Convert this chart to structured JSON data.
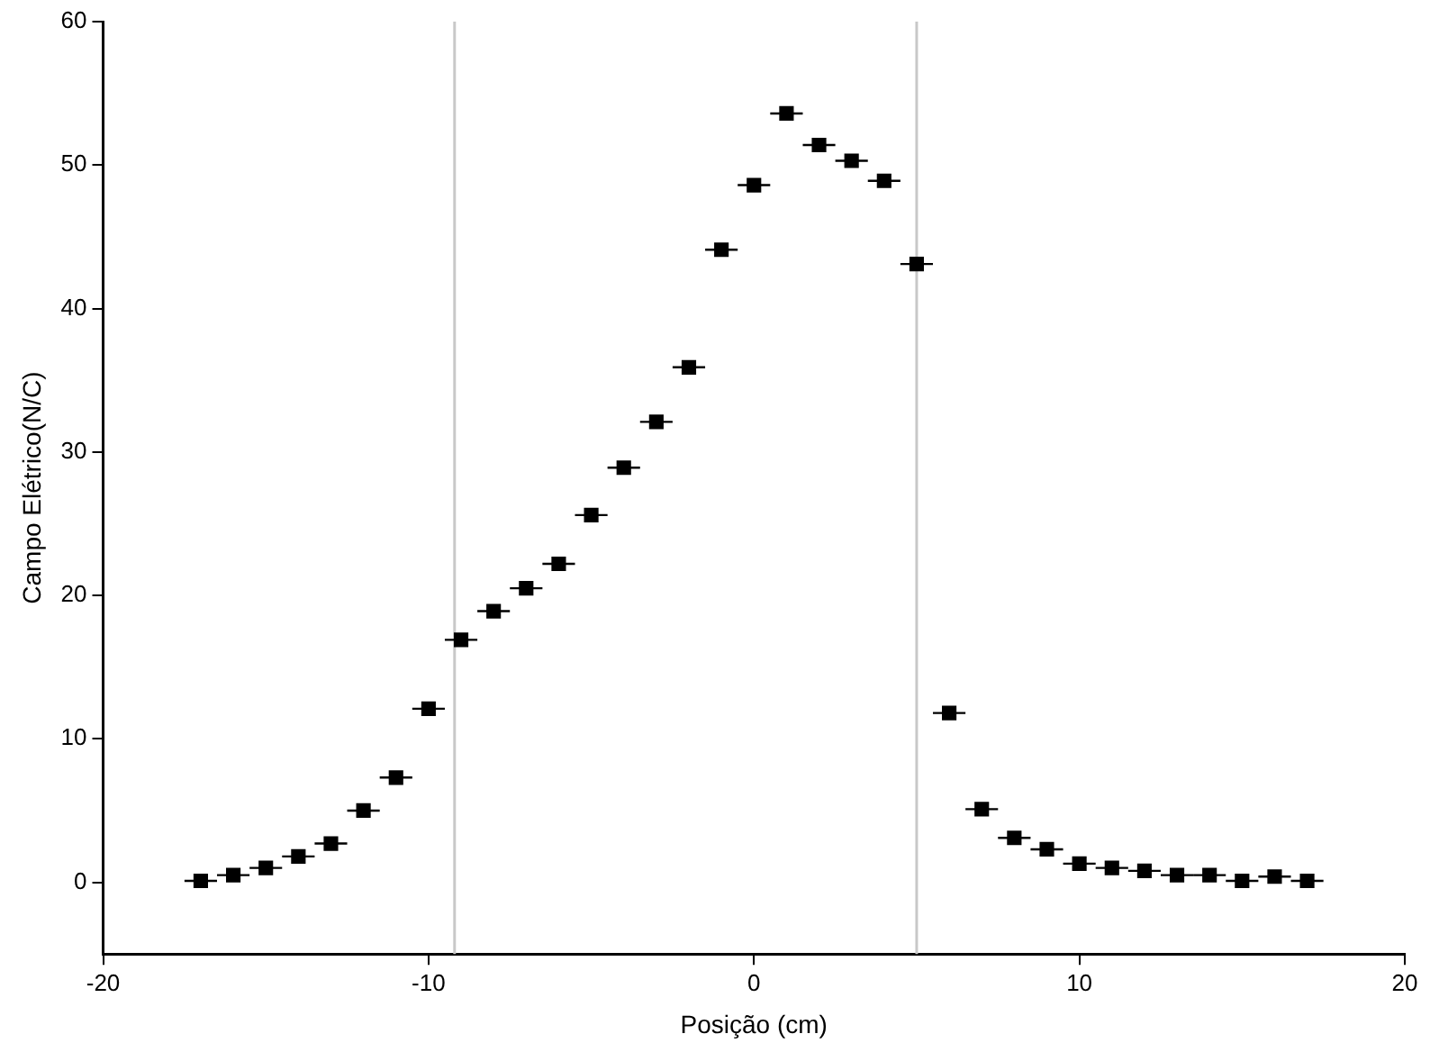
{
  "chart_data": {
    "type": "scatter",
    "xlabel": "Posição (cm)",
    "ylabel": "Campo Elétrico(N/C)",
    "x": [
      -17,
      -16,
      -15,
      -14,
      -13,
      -12,
      -11,
      -10,
      -9,
      -8,
      -7,
      -6,
      -5,
      -4,
      -3,
      -2,
      -1,
      0,
      1,
      2,
      3,
      4,
      5,
      6,
      7,
      8,
      9,
      10,
      11,
      12,
      13,
      14,
      15,
      16,
      17
    ],
    "series": [
      {
        "color": "#000000",
        "values": [
          0.1,
          0.5,
          1.0,
          1.8,
          2.7,
          5.0,
          7.3,
          12.1,
          16.9,
          18.9,
          20.5,
          22.2,
          25.6,
          28.9,
          32.1,
          35.9,
          44.1,
          48.6,
          53.6,
          51.4,
          50.3,
          48.9,
          43.1,
          11.8,
          5.1,
          3.1,
          2.3,
          1.3,
          1.0,
          0.8,
          0.5,
          0.5,
          0.1,
          0.4,
          0.1
        ],
        "xerrors": [
          0.5,
          0.5,
          0.5,
          0.5,
          0.5,
          0.5,
          0.5,
          0.5,
          0.5,
          0.5,
          0.5,
          0.5,
          0.5,
          0.5,
          0.5,
          0.5,
          0.5,
          0.5,
          0.5,
          0.5,
          0.5,
          0.5,
          0.5,
          0.5,
          0.5,
          0.5,
          0.5,
          0.5,
          0.5,
          0.5,
          0.5,
          0.5,
          0.5,
          0.5,
          0.5
        ]
      }
    ],
    "marker": "square",
    "xlim": [
      -20,
      20
    ],
    "xticks": [
      -20,
      -10,
      0,
      10,
      20
    ],
    "ylim": [
      -5,
      60
    ],
    "yticks": [
      0,
      10,
      20,
      30,
      40,
      50,
      60
    ],
    "grid": false,
    "legend": false,
    "ref_lines": [
      {
        "axis": "x",
        "value": -9.2,
        "color": "#c8c8c8"
      },
      {
        "axis": "x",
        "value": 5,
        "color": "#c8c8c8"
      }
    ]
  }
}
